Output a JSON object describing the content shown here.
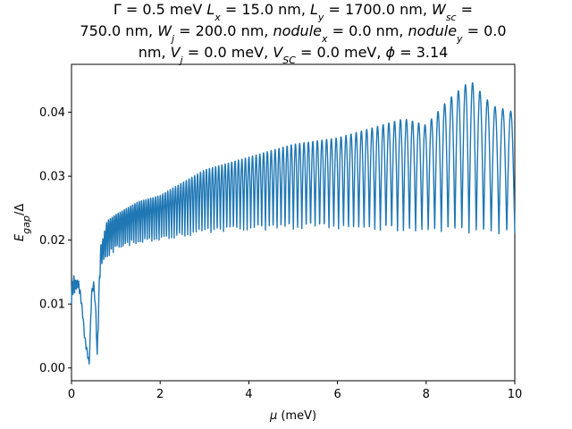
{
  "chart_data": {
    "type": "line",
    "title_lines": [
      {
        "segments": [
          [
            "t",
            "Γ = 0.5 meV "
          ],
          [
            "i",
            "L"
          ],
          [
            "s",
            "x"
          ],
          [
            "t",
            " = 15.0 nm, "
          ],
          [
            "i",
            "L"
          ],
          [
            "s",
            "y"
          ],
          [
            "t",
            " = 1700.0 nm, "
          ],
          [
            "i",
            "W"
          ],
          [
            "s",
            "sc"
          ],
          [
            "t",
            " ="
          ]
        ]
      },
      {
        "segments": [
          [
            "t",
            "750.0 nm, "
          ],
          [
            "i",
            "W"
          ],
          [
            "s",
            "j"
          ],
          [
            "t",
            " = 200.0 nm, "
          ],
          [
            "i",
            "nodule"
          ],
          [
            "s",
            "x"
          ],
          [
            "t",
            " = 0.0 nm, "
          ],
          [
            "i",
            "nodule"
          ],
          [
            "s",
            "y"
          ],
          [
            "t",
            " = 0.0"
          ]
        ]
      },
      {
        "segments": [
          [
            "t",
            "nm, "
          ],
          [
            "i",
            "V"
          ],
          [
            "s",
            "j"
          ],
          [
            "t",
            " = 0.0 meV, "
          ],
          [
            "i",
            "V"
          ],
          [
            "s",
            "SC"
          ],
          [
            "t",
            " = 0.0 meV, "
          ],
          [
            "i",
            "ϕ"
          ],
          [
            "t",
            " = 3.14"
          ]
        ]
      }
    ],
    "xlabel_parts": [
      [
        "i",
        "μ"
      ],
      [
        "t",
        " (meV)"
      ]
    ],
    "ylabel_parts": [
      [
        "i",
        "E"
      ],
      [
        "s",
        "gap"
      ],
      [
        "t",
        "/Δ"
      ]
    ],
    "xlim": [
      0,
      10
    ],
    "ylim": [
      -0.002,
      0.0475
    ],
    "x_ticks": [
      0,
      2,
      4,
      6,
      8,
      10
    ],
    "x_tick_labels": [
      "0",
      "2",
      "4",
      "6",
      "8",
      "10"
    ],
    "y_ticks": [
      0.0,
      0.01,
      0.02,
      0.03,
      0.04
    ],
    "y_tick_labels": [
      "0.00",
      "0.01",
      "0.02",
      "0.03",
      "0.04"
    ],
    "grid": false,
    "line_color": "#1f77b4",
    "series": [
      {
        "x": [
          0.0,
          0.05,
          0.1,
          0.15,
          0.2,
          0.25,
          0.3,
          0.35,
          0.4,
          0.42,
          0.45,
          0.5,
          0.55,
          0.58,
          0.6,
          0.65,
          0.7,
          0.8,
          1.0,
          1.5,
          2.0,
          2.5,
          3.0,
          3.5,
          4.0,
          4.5,
          5.0,
          5.5,
          6.0,
          6.5,
          7.0,
          7.5,
          8.0,
          8.5,
          9.0,
          9.5,
          10.0
        ],
        "lower": [
          0.01,
          0.0115,
          0.012,
          0.0125,
          0.011,
          0.008,
          0.004,
          0.002,
          0.0005,
          0.004,
          0.01,
          0.013,
          0.008,
          0.001,
          0.005,
          0.015,
          0.016,
          0.017,
          0.0185,
          0.0195,
          0.02,
          0.0205,
          0.021,
          0.0213,
          0.0215,
          0.0216,
          0.0217,
          0.0218,
          0.0217,
          0.0216,
          0.0215,
          0.0214,
          0.0213,
          0.0212,
          0.0211,
          0.021,
          0.021
        ],
        "upper": [
          0.013,
          0.0145,
          0.0135,
          0.014,
          0.012,
          0.009,
          0.005,
          0.003,
          0.0008,
          0.005,
          0.012,
          0.0135,
          0.009,
          0.002,
          0.008,
          0.019,
          0.02,
          0.023,
          0.024,
          0.026,
          0.027,
          0.029,
          0.031,
          0.032,
          0.033,
          0.034,
          0.035,
          0.0355,
          0.036,
          0.037,
          0.038,
          0.039,
          0.038,
          0.042,
          0.045,
          0.041,
          0.04
        ]
      }
    ]
  }
}
